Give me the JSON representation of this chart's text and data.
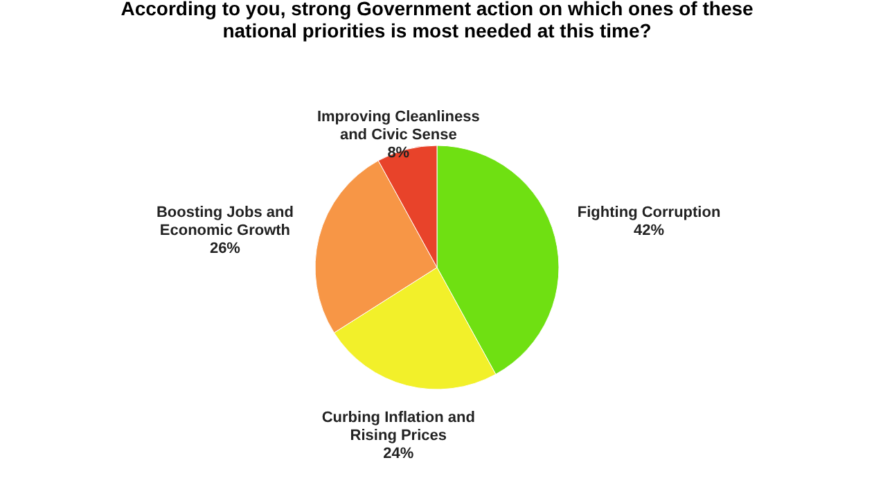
{
  "chart_data": {
    "type": "pie",
    "title": "According to you, strong Government action on which ones of these national priorities is most needed at this time?",
    "categories": [
      "Fighting Corruption",
      "Curbing Inflation and Rising Prices",
      "Boosting Jobs and Economic Growth",
      "Improving Cleanliness and Civic Sense"
    ],
    "values": [
      42,
      24,
      26,
      8
    ],
    "colors": [
      "#6fe012",
      "#f2f02a",
      "#f79646",
      "#e8432a"
    ],
    "value_labels": [
      "42%",
      "24%",
      "26%",
      "8%"
    ]
  }
}
